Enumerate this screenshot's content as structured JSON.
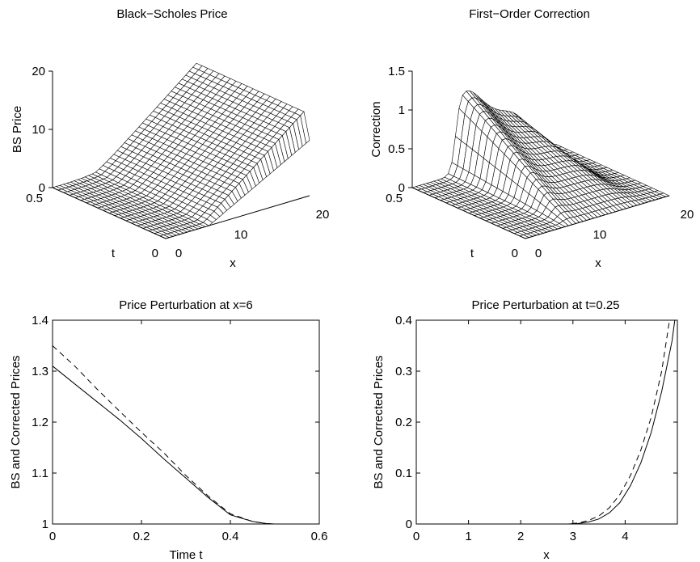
{
  "chart_data": [
    {
      "type": "surface",
      "title": "Black−Scholes Price",
      "xlabel": "x",
      "ylabel": "t",
      "zlabel": "BS Price",
      "xlim": [
        0,
        20
      ],
      "ylim": [
        0,
        0.5
      ],
      "zlim": [
        0,
        20
      ],
      "xticks": [
        "0",
        "10",
        "20"
      ],
      "yticks": [
        "0",
        "0.5"
      ],
      "zticks": [
        "0",
        "10",
        "20"
      ],
      "strike": 6,
      "max_value": 14
    },
    {
      "type": "surface",
      "title": "First−Order Correction",
      "xlabel": "x",
      "ylabel": "t",
      "zlabel": "Correction",
      "xlim": [
        0,
        20
      ],
      "ylim": [
        0,
        0.5
      ],
      "zlim": [
        0,
        1.5
      ],
      "xticks": [
        "0",
        "10",
        "20"
      ],
      "yticks": [
        "0",
        "0.5"
      ],
      "zticks": [
        "0",
        "0.5",
        "1",
        "1.5"
      ],
      "peak": 1.05
    },
    {
      "type": "line",
      "title": "Price Perturbation at x=6",
      "xlabel": "Time t",
      "ylabel": "BS and Corrected Prices",
      "xlim": [
        0,
        0.6
      ],
      "ylim": [
        1,
        1.4
      ],
      "xticks": [
        "0",
        "0.2",
        "0.4",
        "0.6"
      ],
      "yticks": [
        "1",
        "1.1",
        "1.2",
        "1.3",
        "1.4"
      ],
      "series": [
        {
          "style": "solid",
          "x": [
            0,
            0.05,
            0.1,
            0.15,
            0.2,
            0.25,
            0.3,
            0.35,
            0.4,
            0.45,
            0.48,
            0.5
          ],
          "y": [
            1.31,
            1.275,
            1.24,
            1.205,
            1.168,
            1.128,
            1.09,
            1.052,
            1.018,
            1.005,
            1.001,
            1.0
          ]
        },
        {
          "style": "dashed",
          "x": [
            0,
            0.05,
            0.1,
            0.15,
            0.2,
            0.25,
            0.3,
            0.35,
            0.4,
            0.45,
            0.48,
            0.5
          ],
          "y": [
            1.35,
            1.31,
            1.265,
            1.222,
            1.18,
            1.14,
            1.095,
            1.055,
            1.02,
            1.005,
            1.001,
            1.0
          ]
        }
      ]
    },
    {
      "type": "line",
      "title": "Price Perturbation at t=0.25",
      "xlabel": "x",
      "ylabel": "BS and Corrected Prices",
      "xlim": [
        0,
        5
      ],
      "ylim": [
        0,
        0.4
      ],
      "xticks": [
        "0",
        "1",
        "2",
        "3",
        "4"
      ],
      "yticks": [
        "0",
        "0.1",
        "0.2",
        "0.3",
        "0.4"
      ],
      "series": [
        {
          "style": "solid",
          "x": [
            0,
            1,
            2,
            2.9,
            3.1,
            3.3,
            3.5,
            3.7,
            3.9,
            4.1,
            4.3,
            4.5,
            4.7,
            4.9,
            4.95
          ],
          "y": [
            0,
            0,
            0,
            0,
            0.001,
            0.004,
            0.01,
            0.022,
            0.042,
            0.075,
            0.12,
            0.18,
            0.26,
            0.36,
            0.4
          ]
        },
        {
          "style": "dashed",
          "x": [
            0,
            1,
            2,
            2.9,
            3.1,
            3.3,
            3.5,
            3.7,
            3.9,
            4.1,
            4.3,
            4.5,
            4.7,
            4.85
          ],
          "y": [
            0,
            0,
            0,
            0,
            0.002,
            0.007,
            0.016,
            0.032,
            0.058,
            0.095,
            0.145,
            0.21,
            0.3,
            0.4
          ]
        }
      ]
    }
  ]
}
